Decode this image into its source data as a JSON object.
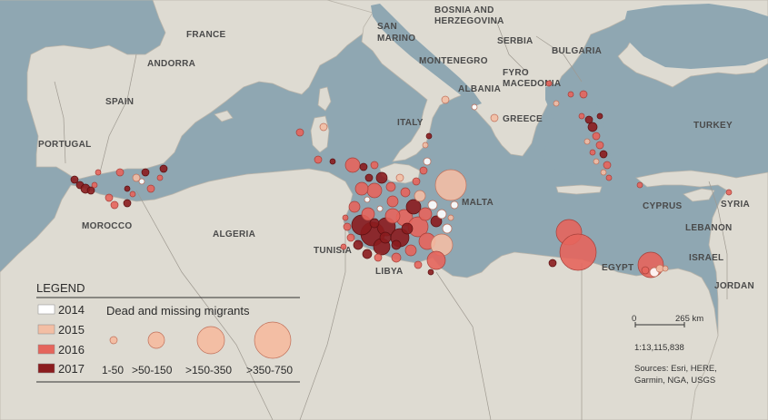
{
  "map": {
    "country_labels": [
      {
        "id": "france",
        "text": "FRANCE"
      },
      {
        "id": "andorra",
        "text": "ANDORRA"
      },
      {
        "id": "spain",
        "text": "SPAIN"
      },
      {
        "id": "portugal",
        "text": "PORTUGAL"
      },
      {
        "id": "morocco",
        "text": "MOROCCO"
      },
      {
        "id": "algeria",
        "text": "ALGERIA"
      },
      {
        "id": "tunisia",
        "text": "TUNISIA"
      },
      {
        "id": "libya",
        "text": "LIBYA"
      },
      {
        "id": "italy",
        "text": "ITALY"
      },
      {
        "id": "san-marino-1",
        "text": "SAN"
      },
      {
        "id": "san-marino-2",
        "text": "MARINO"
      },
      {
        "id": "bosnia-1",
        "text": "BOSNIA AND"
      },
      {
        "id": "bosnia-2",
        "text": "HERZEGOVINA"
      },
      {
        "id": "serbia",
        "text": "SERBIA"
      },
      {
        "id": "montenegro",
        "text": "MONTENEGRO"
      },
      {
        "id": "bulgaria",
        "text": "BULGARIA"
      },
      {
        "id": "fyro-1",
        "text": "FYRO"
      },
      {
        "id": "fyro-2",
        "text": "MACEDONIA"
      },
      {
        "id": "albania",
        "text": "ALBANIA"
      },
      {
        "id": "greece",
        "text": "GREECE"
      },
      {
        "id": "turkey",
        "text": "TURKEY"
      },
      {
        "id": "malta",
        "text": "MALTA"
      },
      {
        "id": "cyprus",
        "text": "CYPRUS"
      },
      {
        "id": "syria",
        "text": "SYRIA"
      },
      {
        "id": "lebanon",
        "text": "LEBANON"
      },
      {
        "id": "israel",
        "text": "ISRAEL"
      },
      {
        "id": "jordan",
        "text": "JORDAN"
      },
      {
        "id": "egypt",
        "text": "EGYPT"
      }
    ],
    "year_colors": {
      "2014": "#ffffff",
      "2015": "#f3bea4",
      "2016": "#e5655c",
      "2017": "#8b1c1e"
    },
    "land_color": "#dedbd2",
    "sea_color": "#8fa7b2"
  },
  "legend": {
    "title": "LEGEND",
    "years": [
      {
        "label": "2014",
        "color": "#ffffff"
      },
      {
        "label": "2015",
        "color": "#f3bea4"
      },
      {
        "label": "2016",
        "color": "#e5655c"
      },
      {
        "label": "2017",
        "color": "#8b1c1e"
      }
    ],
    "size_title": "Dead and missing migrants",
    "sizes": [
      {
        "label": "1-50"
      },
      {
        "label": ">50-150"
      },
      {
        "label": ">150-350"
      },
      {
        "label": ">350-750"
      }
    ]
  },
  "scale": {
    "zero": "0",
    "distance": "265 km",
    "ratio": "1:13,115,838"
  },
  "sources": {
    "line1": "Sources: Esri, HERE,",
    "line2": "Garmin, NGA, USGS"
  }
}
